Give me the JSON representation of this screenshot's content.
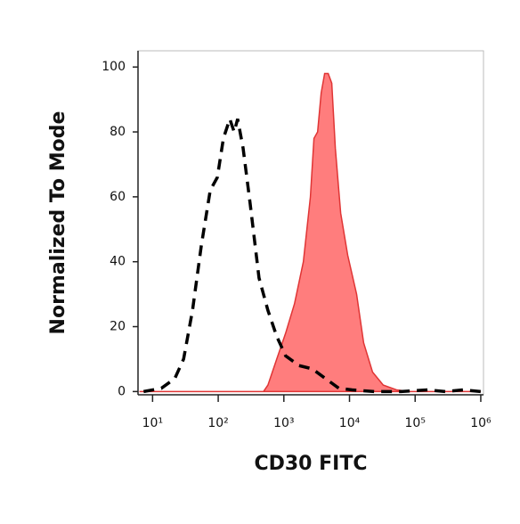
{
  "chart_data": {
    "type": "histogram-overlay",
    "ylabel": "Normalized To Mode",
    "xlabel": "CD30 FITC",
    "xscale": "log",
    "xlim": [
      6,
      1100000
    ],
    "ylim": [
      -1,
      105
    ],
    "xticks": [
      {
        "value": 10,
        "label": "10¹"
      },
      {
        "value": 100,
        "label": "10²"
      },
      {
        "value": 1000,
        "label": "10³"
      },
      {
        "value": 10000,
        "label": "10⁴"
      },
      {
        "value": 100000,
        "label": "10⁵"
      },
      {
        "value": 1000000,
        "label": "10⁶"
      }
    ],
    "yticks": [
      0,
      20,
      40,
      60,
      80,
      100
    ],
    "series": [
      {
        "color": "#000000",
        "style": "dashed",
        "x": [
          7.3,
          13.6,
          21.8,
          29.7,
          40.6,
          55.3,
          75.5,
          96.9,
          120,
          150,
          175,
          198,
          239,
          306,
          419,
          571,
          780,
          1064,
          1698,
          2706,
          4315,
          6887,
          10990,
          23880,
          60800,
          154500,
          287700,
          537000,
          1000000
        ],
        "values": [
          0,
          1,
          4,
          10,
          25,
          45,
          62,
          66,
          78,
          84,
          80,
          84,
          75,
          58,
          35,
          25,
          17,
          11,
          8,
          7,
          4,
          1,
          0.5,
          0,
          0,
          0.5,
          0,
          0.5,
          0
        ]
      },
      {
        "color": "#e03535",
        "fill": "#ff7d7d",
        "style": "filled",
        "x": [
          6.3,
          489,
          571,
          780,
          1064,
          1452,
          1983,
          2541,
          2878,
          3265,
          3698,
          4188,
          4743,
          5372,
          6083,
          7331,
          9400,
          12820,
          16440,
          22450,
          32650,
          52000,
          83000,
          1000000
        ],
        "values": [
          0,
          0,
          2,
          10,
          18,
          27,
          40,
          60,
          78,
          80,
          92,
          98,
          98,
          95,
          75,
          55,
          42,
          30,
          15,
          6,
          2,
          0.5,
          0,
          0
        ]
      }
    ]
  }
}
